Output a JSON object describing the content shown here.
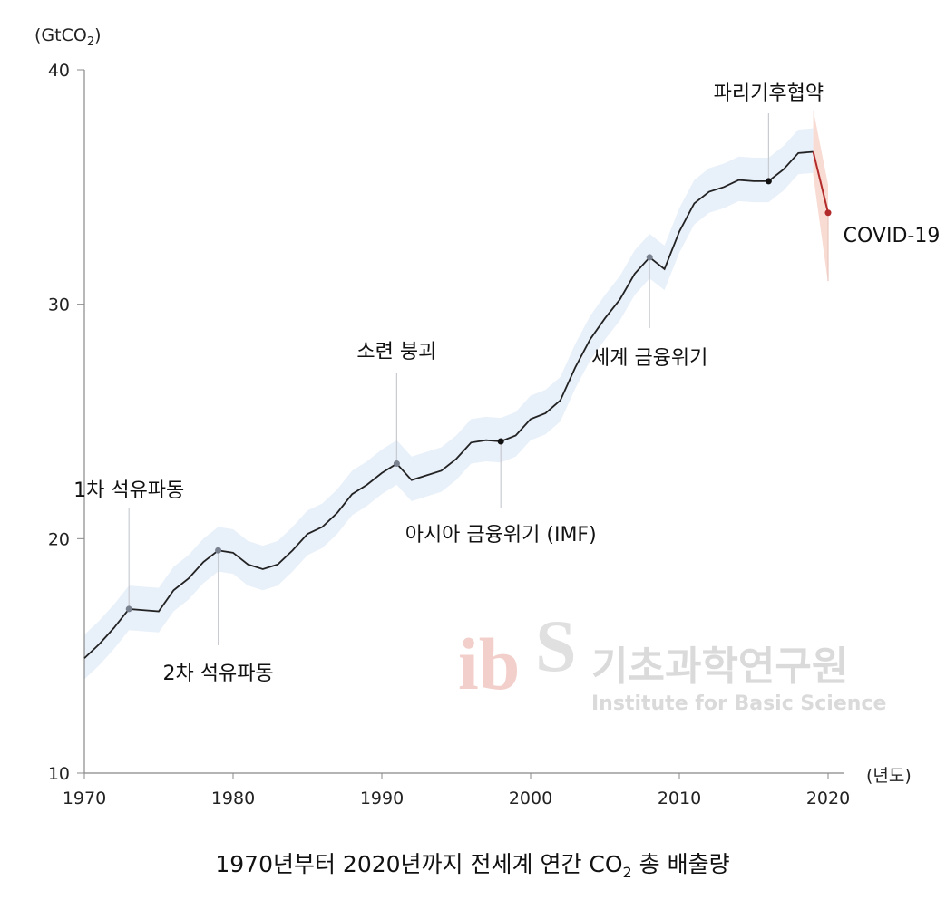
{
  "chart_data": {
    "type": "line",
    "title": "1970년부터 2020년까지 전세계 연간 CO₂ 총 배출량",
    "title_parts": [
      "1970년부터 2020년까지 전세계 연간 CO",
      "2",
      " 총 배출량"
    ],
    "ylabel_parts": [
      "(GtCO",
      "2",
      ")"
    ],
    "xlabel": "(년도)",
    "xlim": [
      1970,
      2020
    ],
    "ylim": [
      10,
      40
    ],
    "x_ticks": [
      1970,
      1980,
      1990,
      2000,
      2010,
      2020
    ],
    "y_ticks": [
      10,
      20,
      30,
      40
    ],
    "grid": false,
    "x": [
      1970,
      1971,
      1972,
      1973,
      1974,
      1975,
      1976,
      1977,
      1978,
      1979,
      1980,
      1981,
      1982,
      1983,
      1984,
      1985,
      1986,
      1987,
      1988,
      1989,
      1990,
      1991,
      1992,
      1993,
      1994,
      1995,
      1996,
      1997,
      1998,
      1999,
      2000,
      2001,
      2002,
      2003,
      2004,
      2005,
      2006,
      2007,
      2008,
      2009,
      2010,
      2011,
      2012,
      2013,
      2014,
      2015,
      2016,
      2017,
      2018,
      2019,
      2020
    ],
    "values": [
      14.9,
      15.5,
      16.2,
      17.0,
      16.95,
      16.9,
      17.8,
      18.3,
      19.0,
      19.5,
      19.4,
      18.9,
      18.7,
      18.9,
      19.5,
      20.2,
      20.5,
      21.1,
      21.9,
      22.3,
      22.8,
      23.2,
      22.5,
      22.7,
      22.9,
      23.4,
      24.1,
      24.2,
      24.15,
      24.4,
      25.1,
      25.35,
      25.9,
      27.3,
      28.5,
      29.4,
      30.2,
      31.3,
      32.0,
      31.5,
      33.1,
      34.3,
      34.8,
      35.0,
      35.3,
      35.25,
      35.25,
      35.75,
      36.45,
      36.5,
      33.9
    ],
    "uncertainty_band": 1.0,
    "colors": {
      "line": "#222222",
      "band": "#e8f0fa",
      "covid": "#b22a2a",
      "covid_band": "#f6d2c8",
      "marker_gray": "#7a8290",
      "axis": "#888888"
    },
    "annotations": [
      {
        "year": 1973,
        "label": "1차 석유파동",
        "position": "above",
        "marker": "gray"
      },
      {
        "year": 1979,
        "label": "2차 석유파동",
        "position": "below",
        "marker": "gray"
      },
      {
        "year": 1991,
        "label": "소련 붕괴",
        "position": "above",
        "marker": "gray"
      },
      {
        "year": 1998,
        "label": "아시아 금융위기 (IMF)",
        "position": "below",
        "marker": "black"
      },
      {
        "year": 2008,
        "label": "세계 금융위기",
        "position": "below",
        "marker": "gray"
      },
      {
        "year": 2016,
        "label": "파리기후협약",
        "position": "above",
        "marker": "black"
      },
      {
        "year": 2020,
        "label": "COVID-19",
        "position": "left",
        "marker": "red"
      }
    ]
  },
  "watermark": {
    "logo": "ibS",
    "korean": "기초과학연구원",
    "english": "Institute for Basic Science"
  }
}
